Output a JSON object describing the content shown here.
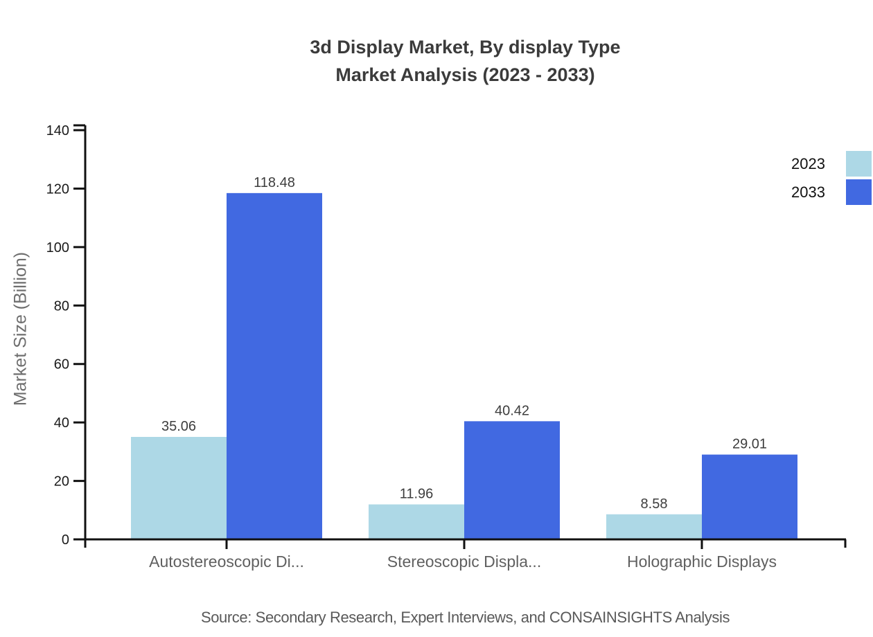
{
  "chart_data": {
    "type": "bar",
    "title": "3d Display Market, By display Type",
    "subtitle": "Market Analysis (2023 - 2033)",
    "categories": [
      "Autostereoscopic Di...",
      "Stereoscopic Displa...",
      "Holographic Displays"
    ],
    "series": [
      {
        "name": "2023",
        "color": "#ADD8E6",
        "values": [
          35.06,
          11.96,
          8.58
        ]
      },
      {
        "name": "2033",
        "color": "#4169E1",
        "values": [
          118.48,
          40.42,
          29.01
        ]
      }
    ],
    "value_label_format": "2-decimals",
    "xlabel": "",
    "ylabel": "Market Size (Billion)",
    "ylim": [
      0,
      140
    ],
    "yticks": [
      0,
      20,
      40,
      60,
      80,
      100,
      120,
      140
    ],
    "grid": false,
    "legend_position": "top-right",
    "axis_color": "#111111",
    "tick_label_color": "#1a1a1a",
    "category_label_color": "#606060",
    "value_label_color": "#3d3d3d",
    "source": "Source: Secondary Research, Expert Interviews, and CONSAINSIGHTS Analysis"
  }
}
